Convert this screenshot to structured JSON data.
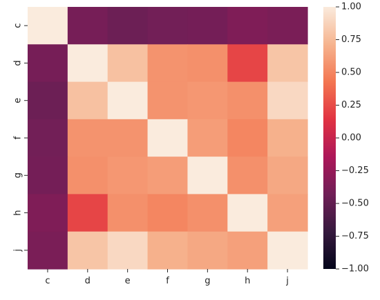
{
  "chart_data": {
    "type": "heatmap",
    "title": "",
    "xlabel": "",
    "ylabel": "",
    "x_categories": [
      "c",
      "d",
      "e",
      "f",
      "g",
      "h",
      "j"
    ],
    "y_categories": [
      "c",
      "d",
      "e",
      "f",
      "g",
      "h",
      "j"
    ],
    "values": [
      [
        1.0,
        -0.4,
        -0.45,
        -0.42,
        -0.41,
        -0.36,
        -0.38
      ],
      [
        -0.4,
        1.0,
        0.78,
        0.56,
        0.55,
        0.22,
        0.8
      ],
      [
        -0.45,
        0.78,
        1.0,
        0.56,
        0.58,
        0.55,
        0.9
      ],
      [
        -0.42,
        0.56,
        0.56,
        1.0,
        0.61,
        0.5,
        0.7
      ],
      [
        -0.41,
        0.55,
        0.58,
        0.61,
        1.0,
        0.55,
        0.66
      ],
      [
        -0.36,
        0.22,
        0.55,
        0.5,
        0.55,
        1.0,
        0.62
      ],
      [
        -0.38,
        0.8,
        0.9,
        0.7,
        0.66,
        0.62,
        1.0
      ]
    ],
    "colorbar": {
      "min": -1.0,
      "max": 1.0,
      "ticks": [
        1.0,
        0.75,
        0.5,
        0.25,
        0.0,
        -0.25,
        -0.5,
        -0.75,
        -1.0
      ],
      "tick_labels": [
        "1.00",
        "0.75",
        "0.50",
        "0.25",
        "0.00",
        "−0.25",
        "−0.50",
        "−0.75",
        "−1.00"
      ],
      "colormap": "rocket",
      "colormap_stops": [
        "#03051a",
        "#36193e",
        "#701f57",
        "#ad1759",
        "#e13342",
        "#f37651",
        "#f6b48f",
        "#faebdd"
      ]
    },
    "grid": false,
    "legend": "colorbar-right"
  }
}
